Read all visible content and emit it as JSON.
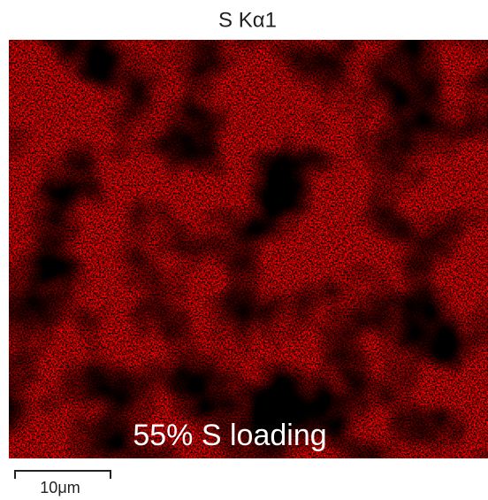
{
  "title": "S Kα1",
  "caption": "55% S loading",
  "scale_bar": "10μm"
}
